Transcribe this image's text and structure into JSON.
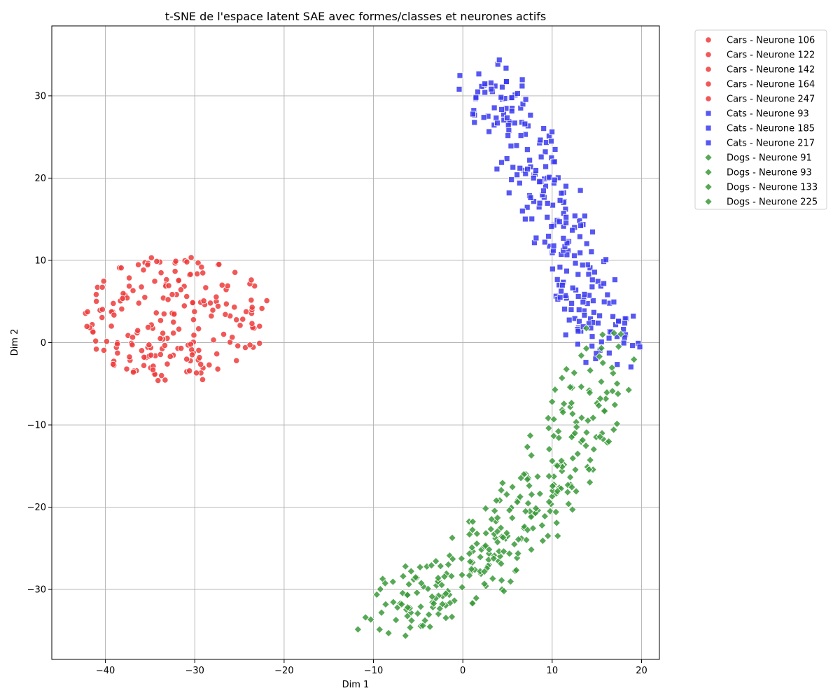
{
  "chart_data": {
    "type": "scatter",
    "title": "t-SNE de l'espace latent SAE avec formes/classes et neurones actifs",
    "xlabel": "Dim 1",
    "ylabel": "Dim 2",
    "xlim": [
      -46,
      22
    ],
    "ylim": [
      -38.5,
      38.5
    ],
    "xticks": [
      -40,
      -30,
      -20,
      -10,
      0,
      10,
      20
    ],
    "yticks": [
      -30,
      -20,
      -10,
      0,
      10,
      20,
      30
    ],
    "grid": true,
    "legend_position": "outside-top-right",
    "classes": [
      {
        "class": "Cars",
        "color": "#ef3b3b",
        "marker": "circle",
        "center": [
          -32,
          3
        ],
        "spread": [
          5.5,
          4.2
        ],
        "count": 210
      },
      {
        "class": "Cats",
        "color": "#3a3af0",
        "marker": "square",
        "center": [
          10,
          20
        ],
        "spread": [
          4.2,
          6.5
        ],
        "count": 260
      },
      {
        "class": "Dogs",
        "color": "#3a9a3a",
        "marker": "diamond",
        "center": [
          3,
          -18
        ],
        "spread": [
          6.0,
          7.0
        ],
        "count": 310
      }
    ],
    "series": [
      {
        "name": "Cars - Neurone 106",
        "class": "Cars",
        "color": "#ef3b3b",
        "marker": "circle"
      },
      {
        "name": "Cars - Neurone 122",
        "class": "Cars",
        "color": "#ef3b3b",
        "marker": "circle"
      },
      {
        "name": "Cars - Neurone 142",
        "class": "Cars",
        "color": "#ef3b3b",
        "marker": "circle"
      },
      {
        "name": "Cars - Neurone 164",
        "class": "Cars",
        "color": "#ef3b3b",
        "marker": "circle"
      },
      {
        "name": "Cars - Neurone 247",
        "class": "Cars",
        "color": "#ef3b3b",
        "marker": "circle"
      },
      {
        "name": "Cats - Neurone 93",
        "class": "Cats",
        "color": "#3a3af0",
        "marker": "square"
      },
      {
        "name": "Cats - Neurone 185",
        "class": "Cats",
        "color": "#3a3af0",
        "marker": "square"
      },
      {
        "name": "Cats - Neurone 217",
        "class": "Cats",
        "color": "#3a3af0",
        "marker": "square"
      },
      {
        "name": "Dogs - Neurone 91",
        "class": "Dogs",
        "color": "#3a9a3a",
        "marker": "diamond"
      },
      {
        "name": "Dogs - Neurone 93",
        "class": "Dogs",
        "color": "#3a9a3a",
        "marker": "diamond"
      },
      {
        "name": "Dogs - Neurone 133",
        "class": "Dogs",
        "color": "#3a9a3a",
        "marker": "diamond"
      },
      {
        "name": "Dogs - Neurone 225",
        "class": "Dogs",
        "color": "#3a9a3a",
        "marker": "diamond"
      }
    ]
  }
}
